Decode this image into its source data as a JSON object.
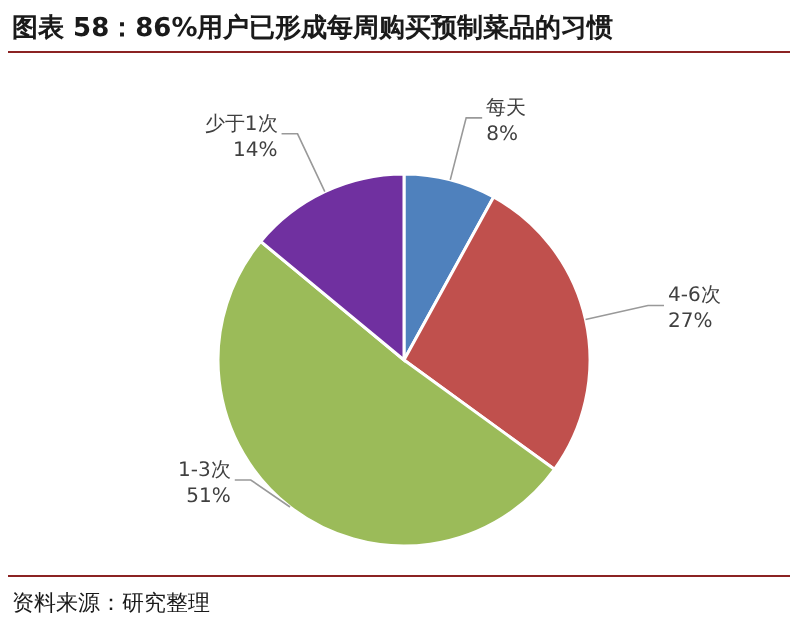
{
  "chart_data": {
    "type": "pie",
    "title": "图表 58：86%用户已形成每周购买预制菜品的习惯",
    "categories": [
      "每天",
      "4-6次",
      "1-3次",
      "少于1次"
    ],
    "values": [
      8,
      27,
      51,
      14
    ],
    "value_labels": [
      "8%",
      "27%",
      "51%",
      "14%"
    ],
    "colors": [
      "#4f81bd",
      "#c0504d",
      "#9bbb59",
      "#7030a0"
    ],
    "annotations": [
      "资料来源：研究整理"
    ]
  }
}
